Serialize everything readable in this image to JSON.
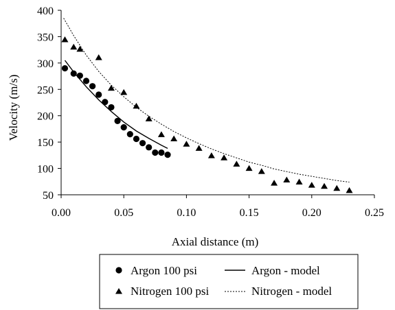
{
  "chart_data": {
    "type": "scatter",
    "xlabel": "Axial distance (m)",
    "ylabel": "Velocity (m/s)",
    "xlim": [
      0,
      0.25
    ],
    "ylim": [
      50,
      400
    ],
    "xticks": [
      "0.00",
      "0.05",
      "0.10",
      "0.15",
      "0.20",
      "0.25"
    ],
    "yticks": [
      "50",
      "100",
      "150",
      "200",
      "250",
      "300",
      "350",
      "400"
    ],
    "grid": false,
    "legend_position": "bottom",
    "series": [
      {
        "name": "Argon 100 psi",
        "kind": "scatter",
        "marker": "circle",
        "x": [
          0.003,
          0.01,
          0.015,
          0.02,
          0.025,
          0.03,
          0.035,
          0.04,
          0.045,
          0.05,
          0.055,
          0.06,
          0.065,
          0.07,
          0.075,
          0.08,
          0.085
        ],
        "y": [
          290,
          280,
          276,
          266,
          256,
          240,
          226,
          216,
          190,
          178,
          165,
          156,
          148,
          140,
          130,
          130,
          126
        ]
      },
      {
        "name": "Nitrogen 100 psi",
        "kind": "scatter",
        "marker": "triangle",
        "x": [
          0.003,
          0.01,
          0.015,
          0.03,
          0.04,
          0.05,
          0.06,
          0.07,
          0.08,
          0.09,
          0.1,
          0.11,
          0.12,
          0.13,
          0.14,
          0.15,
          0.16,
          0.17,
          0.18,
          0.19,
          0.2,
          0.21,
          0.22,
          0.23
        ],
        "y": [
          344,
          330,
          326,
          310,
          252,
          244,
          218,
          194,
          164,
          156,
          146,
          138,
          124,
          120,
          108,
          100,
          94,
          72,
          78,
          74,
          68,
          66,
          62,
          58
        ]
      },
      {
        "name": "Argon - model",
        "kind": "line",
        "dash": "solid",
        "x": [
          0.003,
          0.01,
          0.02,
          0.03,
          0.04,
          0.05,
          0.06,
          0.07,
          0.08,
          0.085
        ],
        "y": [
          305,
          283,
          255,
          230,
          208,
          188,
          171,
          157,
          144,
          138
        ]
      },
      {
        "name": "Nitrogen - model",
        "kind": "line",
        "dash": "dotted",
        "x": [
          0.002,
          0.01,
          0.02,
          0.03,
          0.04,
          0.05,
          0.06,
          0.07,
          0.08,
          0.09,
          0.1,
          0.11,
          0.12,
          0.13,
          0.14,
          0.15,
          0.16,
          0.17,
          0.18,
          0.19,
          0.2,
          0.21,
          0.22,
          0.23
        ],
        "y": [
          385,
          352,
          315,
          284,
          258,
          236,
          216,
          199,
          184,
          170,
          158,
          147,
          137,
          128,
          120,
          112,
          106,
          99,
          94,
          89,
          85,
          81,
          77,
          74
        ]
      }
    ],
    "legend": {
      "entries": [
        "Argon 100 psi",
        "Argon - model",
        "Nitrogen 100 psi",
        "Nitrogen - model"
      ]
    }
  }
}
